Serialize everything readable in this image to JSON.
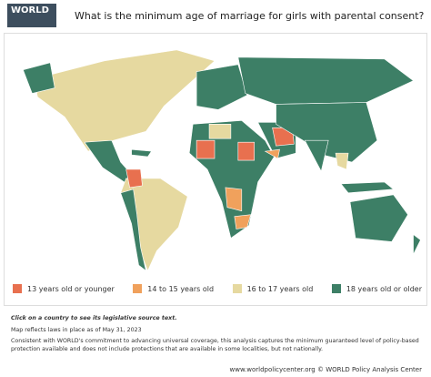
{
  "header": {
    "logo": "WORLD",
    "title": "What is the minimum age of marriage for girls with parental consent?"
  },
  "legend": [
    {
      "label": "13 years old or younger",
      "color": "#e8704f"
    },
    {
      "label": "14 to 15 years old",
      "color": "#f0a15c"
    },
    {
      "label": "16 to 17 years old",
      "color": "#e6d9a0"
    },
    {
      "label": "18 years old or older",
      "color": "#3d7f66"
    }
  ],
  "notes": [
    "Click on a country to see its legislative source text.",
    "Map reflects laws in place as of May 31, 2023",
    "Consistent with WORLD's commitment to advancing universal coverage, this analysis captures the minimum guaranteed level of policy-based protection available and does not include protections that are available in some localities, but not nationally."
  ],
  "footer": "www.worldpolicycenter.org © WORLD Policy Analysis Center"
}
